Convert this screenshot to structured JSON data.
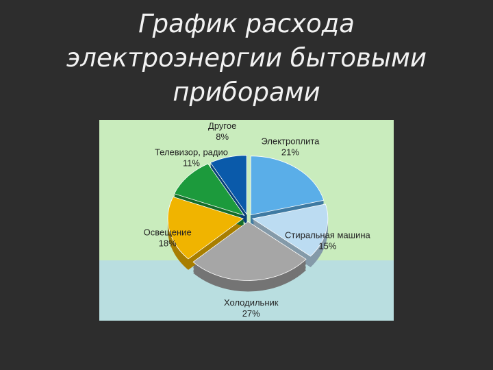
{
  "chart_data": {
    "type": "pie",
    "title": "График расхода электроэнергии бытовыми приборами",
    "categories": [
      "Электроплита",
      "Стиральная машина",
      "Холодильник",
      "Освещение",
      "Телевизор, радио",
      "Другое"
    ],
    "values": [
      21,
      15,
      27,
      18,
      11,
      8
    ],
    "value_labels": [
      "21%",
      "15%",
      "27%",
      "18%",
      "11%",
      "8%"
    ],
    "colors": [
      "#5aaee8",
      "#bcdcf2",
      "#a6a6a6",
      "#f0b400",
      "#1c9a3c",
      "#0a5aaa"
    ]
  }
}
